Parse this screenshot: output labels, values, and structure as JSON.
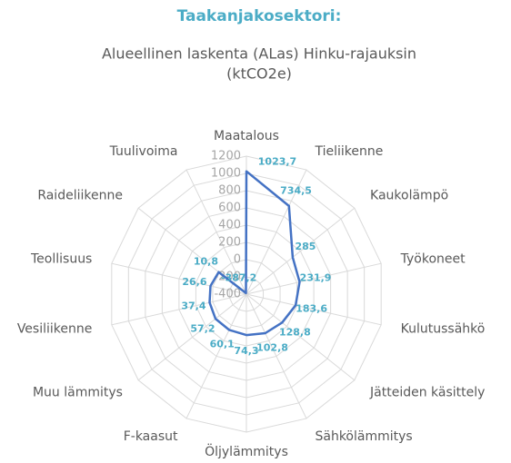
{
  "chart_data": {
    "type": "radar",
    "title": "Taakanjakosektori:",
    "subtitle": [
      "Alueellinen laskenta (ALas) Hinku-rajauksin",
      "(ktCO2e)"
    ],
    "categories": [
      "Maatalous",
      "Tieliikenne",
      "Kaukolämpö",
      "Työkoneet",
      "Kulutussähkö",
      "Jätteiden käsittely",
      "Sähkölämmitys",
      "Öljylämmitys",
      "F-kaasut",
      "Muu lämmitys",
      "Vesiliikenne",
      "Teollisuus",
      "Raideliikenne",
      "Tuulivoima"
    ],
    "values": [
      1023.7,
      734.5,
      285,
      231.9,
      183.6,
      128.8,
      102.8,
      74.3,
      60.1,
      57.2,
      37.4,
      26.6,
      10.8,
      -387.2
    ],
    "value_labels": [
      "1023,7",
      "734,5",
      "285",
      "231,9",
      "183,6",
      "128,8",
      "102,8",
      "74,3",
      "60,1",
      "57,2",
      "37,4",
      "26,6",
      "10,8",
      "-387,2"
    ],
    "color": "#4472c4",
    "ylim": [
      -400,
      1200
    ],
    "yticks": [
      -400,
      -200,
      0,
      200,
      400,
      600,
      800,
      1000,
      1200
    ],
    "grid": true
  }
}
